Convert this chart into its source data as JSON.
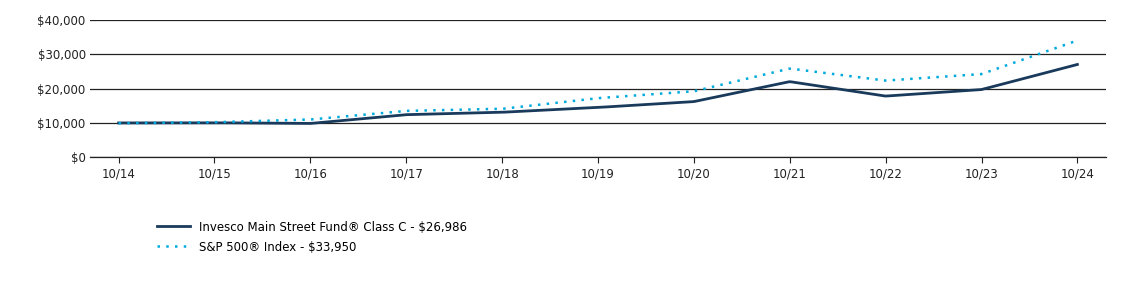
{
  "x_labels": [
    "10/14",
    "10/15",
    "10/16",
    "10/17",
    "10/18",
    "10/19",
    "10/20",
    "10/21",
    "10/22",
    "10/23",
    "10/24"
  ],
  "x_positions": [
    0,
    1,
    2,
    3,
    4,
    5,
    6,
    7,
    8,
    9,
    10
  ],
  "fund_values": [
    10000,
    10050,
    9850,
    12400,
    13100,
    14500,
    16200,
    22000,
    17800,
    19700,
    26986
  ],
  "index_values": [
    9900,
    10200,
    11000,
    13500,
    14100,
    17200,
    19200,
    25800,
    22300,
    24200,
    33950
  ],
  "fund_color": "#1a3a5c",
  "index_color": "#00AADD",
  "ylim": [
    0,
    40000
  ],
  "yticks": [
    0,
    10000,
    20000,
    30000,
    40000
  ],
  "ytick_labels": [
    "$0",
    "$10,000",
    "$20,000",
    "$30,000",
    "$40,000"
  ],
  "legend_fund": "Invesco Main Street Fund® Class C - $26,986",
  "legend_index": "S&P 500® Index - $33,950",
  "background_color": "#ffffff",
  "grid_color": "#222222"
}
